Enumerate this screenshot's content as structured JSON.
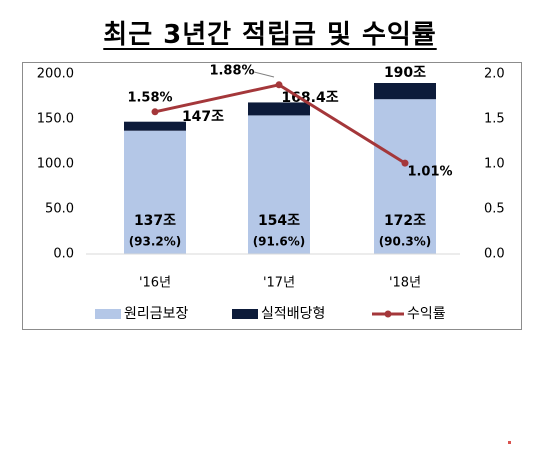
{
  "title": "최근 3년간 적립금 및 수익률",
  "chart_data": {
    "type": "bar",
    "stacked": true,
    "categories": [
      "'16년",
      "'17년",
      "'18년"
    ],
    "series": [
      {
        "name": "원리금보장",
        "type": "bar",
        "axis": "left",
        "color": "#b4c7e7",
        "values": [
          137,
          154,
          172
        ],
        "labels": [
          "137조",
          "154조",
          "172조"
        ],
        "sublabels": [
          "(93.2%)",
          "(91.6%)",
          "(90.3%)"
        ]
      },
      {
        "name": "실적배당형",
        "type": "bar",
        "axis": "left",
        "color": "#0d1b3a",
        "values": [
          10,
          14.4,
          18
        ]
      },
      {
        "name": "수익률",
        "type": "line",
        "axis": "right",
        "color": "#a4373a",
        "values": [
          1.58,
          1.88,
          1.01
        ],
        "labels": [
          "1.58%",
          "1.88%",
          "1.01%"
        ]
      }
    ],
    "totals": [
      147,
      168.4,
      190
    ],
    "total_labels": [
      "147조",
      "168.4조",
      "190조"
    ],
    "left_axis": {
      "ylim": [
        0,
        200
      ],
      "ticks": [
        "0.0",
        "50.0",
        "100.0",
        "150.0",
        "200.0"
      ]
    },
    "right_axis": {
      "ylim": [
        0,
        2
      ],
      "ticks": [
        "0.0",
        "0.5",
        "1.0",
        "1.5",
        "2.0"
      ]
    },
    "legend_position": "bottom",
    "grid": false
  }
}
